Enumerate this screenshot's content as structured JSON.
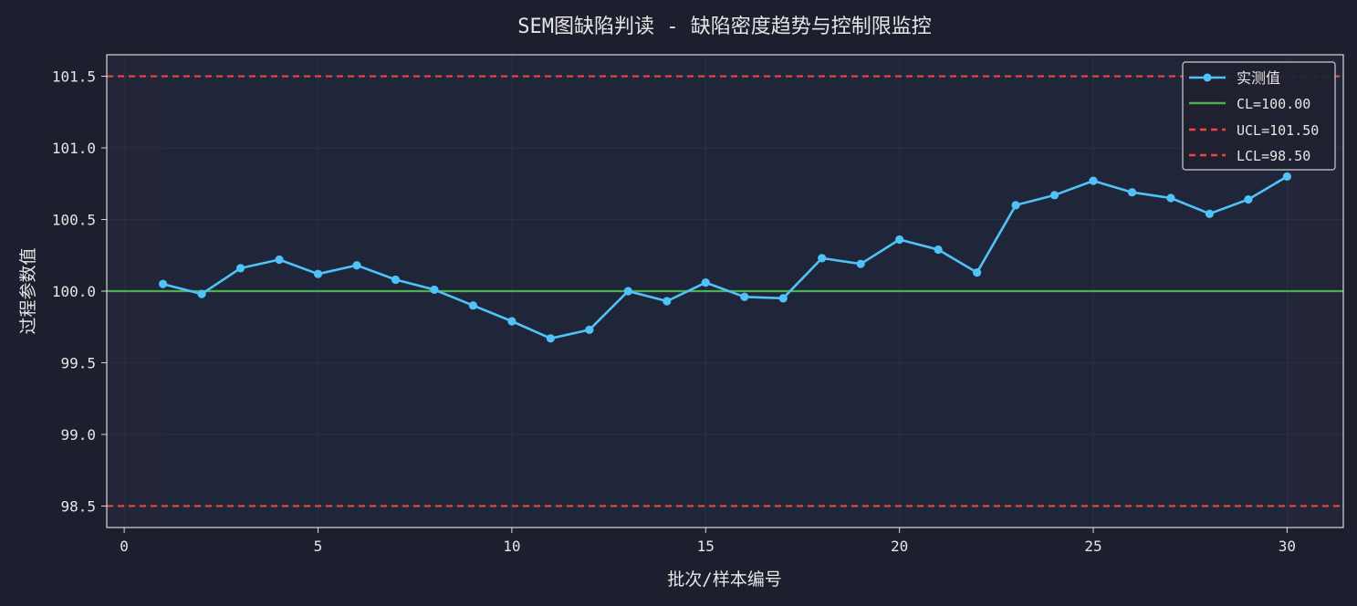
{
  "colors": {
    "page_bg": "#1e1f2e",
    "plot_bg": "#232538",
    "data_band": "#20263a",
    "grid": "#3a3d52",
    "axis": "#d9d9d9",
    "text": "#e6e6e6",
    "measured": "#4fc3f7",
    "cl": "#4caf50",
    "limits": "#ef4444",
    "legend_bg": "#1f2131",
    "legend_border": "#cfcfcf"
  },
  "chart_data": {
    "type": "line",
    "title": "SEM图缺陷判读 - 缺陷密度趋势与控制限监控",
    "xlabel": "批次/样本编号",
    "ylabel": "过程参数值",
    "xlim": [
      -0.45,
      31.45
    ],
    "ylim": [
      98.35,
      101.65
    ],
    "xticks": [
      0,
      5,
      10,
      15,
      20,
      25,
      30
    ],
    "xtick_labels": [
      "0",
      "5",
      "10",
      "15",
      "20",
      "25",
      "30"
    ],
    "yticks": [
      98.5,
      99.0,
      99.5,
      100.0,
      100.5,
      101.0,
      101.5
    ],
    "ytick_labels": [
      "98.5",
      "99.0",
      "99.5",
      "100.0",
      "100.5",
      "101.0",
      "101.5"
    ],
    "grid": true,
    "legend_position": "top-right",
    "series": [
      {
        "name": "实测值",
        "x": [
          1,
          2,
          3,
          4,
          5,
          6,
          7,
          8,
          9,
          10,
          11,
          12,
          13,
          14,
          15,
          16,
          17,
          18,
          19,
          20,
          21,
          22,
          23,
          24,
          25,
          26,
          27,
          28,
          29,
          30
        ],
        "values": [
          100.05,
          99.98,
          100.16,
          100.22,
          100.12,
          100.18,
          100.08,
          100.01,
          99.9,
          99.79,
          99.67,
          99.73,
          100.0,
          99.93,
          100.06,
          99.96,
          99.95,
          100.23,
          100.19,
          100.36,
          100.29,
          100.13,
          100.6,
          100.67,
          100.77,
          100.69,
          100.65,
          100.54,
          100.64,
          100.8
        ]
      }
    ],
    "control_limits": [
      {
        "name": "CL=100.00",
        "value": 100.0,
        "style": "solid"
      },
      {
        "name": "UCL=101.50",
        "value": 101.5,
        "style": "dashed"
      },
      {
        "name": "LCL=98.50",
        "value": 98.5,
        "style": "dashed"
      }
    ],
    "data_band_x": [
      1,
      30
    ]
  }
}
